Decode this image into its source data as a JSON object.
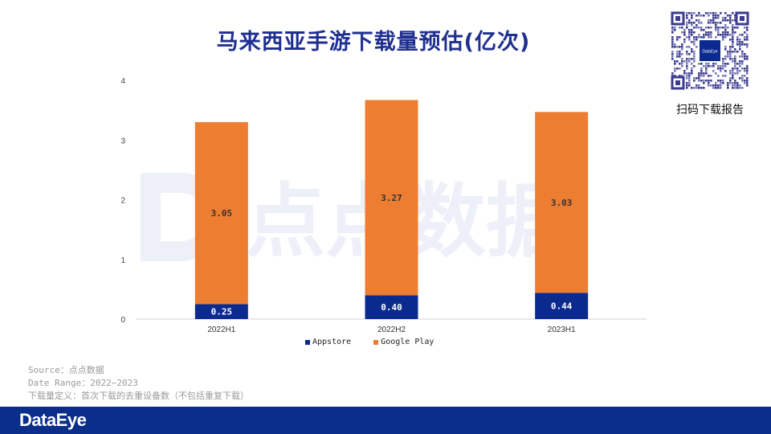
{
  "title": "马来西亚手游下载量预估(亿次)",
  "qr": {
    "logo_text": "DataEye",
    "caption": "扫码下载报告"
  },
  "watermark": "点点数据",
  "notes": {
    "source": "Source：点点数据",
    "date_range": "Date Range：2022~2023",
    "definition": "下载量定义：首次下载的去重设备数（不包括重复下载）"
  },
  "footer": {
    "brand": "DataEye"
  },
  "colors": {
    "appstore": "#0b2a8e",
    "google_play": "#ed7d31",
    "title": "#1f2f8f",
    "footer": "#0b2e8a"
  },
  "chart_data": {
    "type": "bar",
    "stacked": true,
    "categories": [
      "2022H1",
      "2022H2",
      "2023H1"
    ],
    "series": [
      {
        "name": "Appstore",
        "values": [
          0.25,
          0.4,
          0.44
        ],
        "labels": [
          "0.25",
          "0.40",
          "0.44"
        ]
      },
      {
        "name": "Google Play",
        "values": [
          3.05,
          3.27,
          3.03
        ],
        "labels": [
          "3.05",
          "3.27",
          "3.03"
        ]
      }
    ],
    "ylim": [
      0,
      4
    ],
    "yticks": [
      "0",
      "1",
      "2",
      "3",
      "4"
    ],
    "grid": false,
    "legend_position": "bottom"
  }
}
